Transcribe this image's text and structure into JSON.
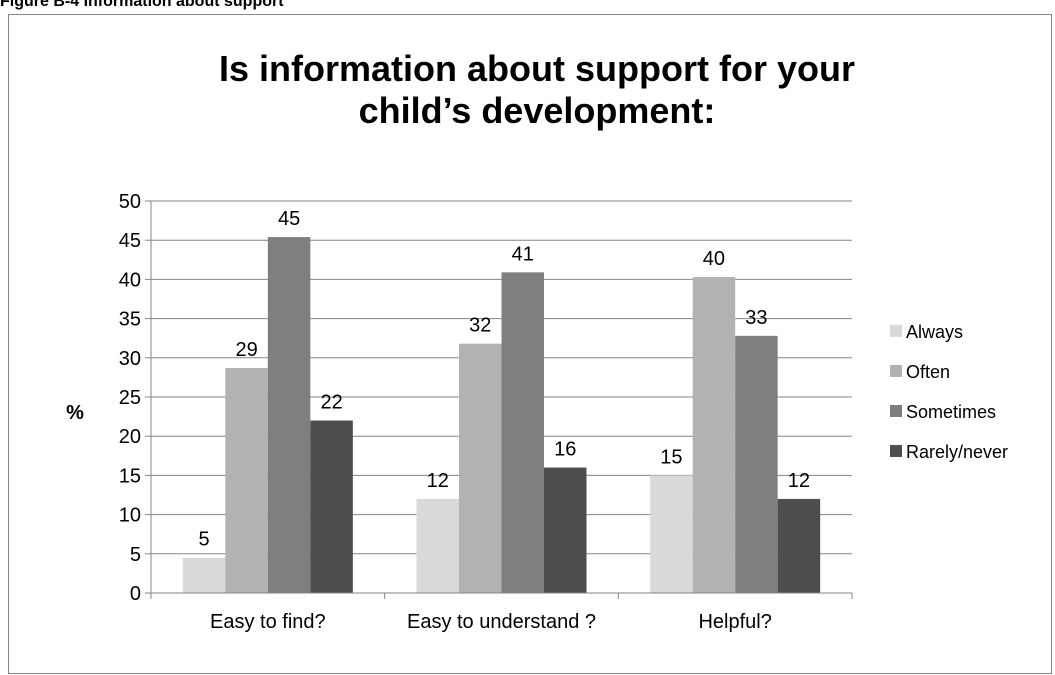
{
  "figure": {
    "caption": "Figure B-4 Information about support"
  },
  "chart_data": {
    "type": "bar",
    "title_lines": [
      "Is information about support for your",
      "child’s development:"
    ],
    "categories": [
      "Easy to find?",
      "Easy to understand ?",
      "Helpful?"
    ],
    "series": [
      {
        "name": "Always",
        "color": "#d9d9d9",
        "values": [
          4.5,
          12,
          15
        ],
        "labels": [
          "5",
          "12",
          "15"
        ]
      },
      {
        "name": "Often",
        "color": "#b2b2b2",
        "values": [
          28.7,
          31.8,
          40.3
        ],
        "labels": [
          "29",
          "32",
          "40"
        ]
      },
      {
        "name": "Sometimes",
        "color": "#7f7f7f",
        "values": [
          45.4,
          40.9,
          32.8
        ],
        "labels": [
          "45",
          "41",
          "33"
        ]
      },
      {
        "name": "Rarely/never",
        "color": "#4d4d4d",
        "values": [
          22,
          16,
          12
        ],
        "labels": [
          "22",
          "16",
          "12"
        ]
      }
    ],
    "ylabel": "%",
    "ylim": [
      0,
      50
    ],
    "yticks": [
      0,
      5,
      10,
      15,
      20,
      25,
      30,
      35,
      40,
      45,
      50
    ],
    "grid": true,
    "legend_position": "right"
  }
}
